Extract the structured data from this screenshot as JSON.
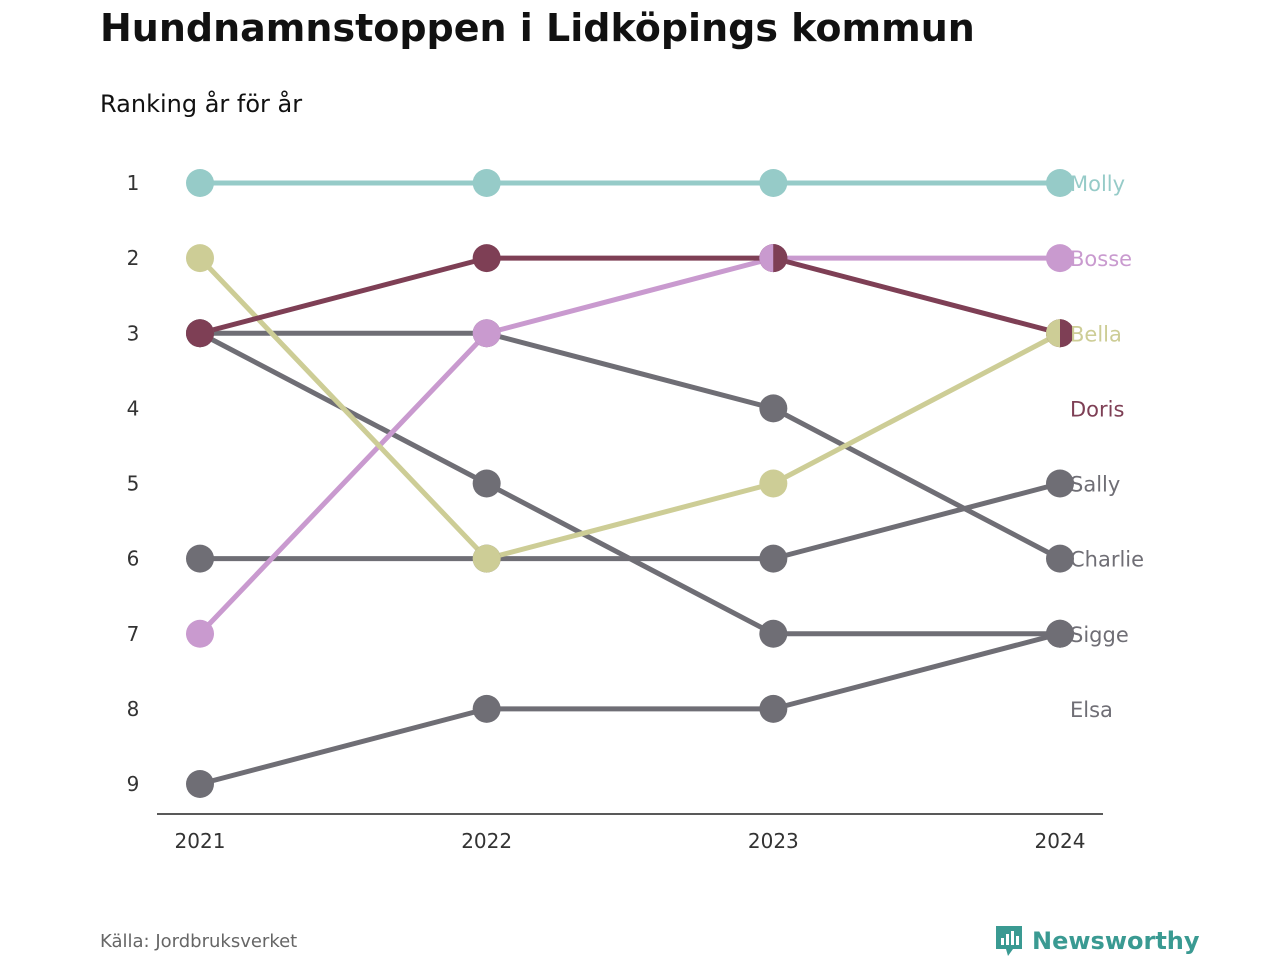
{
  "chart_data": {
    "type": "line",
    "title": "Hundnamnstoppen i Lidköpings kommun",
    "subtitle": "Ranking år för år",
    "x": [
      "2021",
      "2022",
      "2023",
      "2024"
    ],
    "y_ticks": [
      "1",
      "2",
      "3",
      "4",
      "5",
      "6",
      "7",
      "8",
      "9"
    ],
    "ylim": [
      1,
      9
    ],
    "y_inverted": true,
    "grid": false,
    "series": [
      {
        "name": "Molly",
        "values": [
          1,
          1,
          1,
          1
        ],
        "color": "#96cbc8"
      },
      {
        "name": "Bosse",
        "values": [
          7,
          3,
          2,
          2
        ],
        "color": "#c99acf"
      },
      {
        "name": "Bella",
        "values": [
          2,
          6,
          5,
          3
        ],
        "color": "#cdcd96"
      },
      {
        "name": "Doris",
        "values": [
          3,
          2,
          2,
          3
        ],
        "color": "#7e3f55"
      },
      {
        "name": "Sally",
        "values": [
          6,
          6,
          6,
          5
        ],
        "color": "#6f6e75"
      },
      {
        "name": "Charlie",
        "values": [
          3,
          3,
          4,
          6
        ],
        "color": "#6f6e75"
      },
      {
        "name": "Sigge",
        "values": [
          3,
          5,
          7,
          7
        ],
        "color": "#6f6e75"
      },
      {
        "name": "Elsa",
        "values": [
          9,
          8,
          8,
          7
        ],
        "color": "#6f6e75"
      }
    ],
    "end_labels": [
      {
        "text": "Molly",
        "rank": 1,
        "color": "#96cbc8"
      },
      {
        "text": "Bosse",
        "rank": 2,
        "color": "#c99acf"
      },
      {
        "text": "Bella",
        "rank": 3,
        "color": "#cdcd96"
      },
      {
        "text": "Doris",
        "rank": 4,
        "color": "#7e3f55"
      },
      {
        "text": "Sally",
        "rank": 5,
        "color": "#6f6e75"
      },
      {
        "text": "Charlie",
        "rank": 6,
        "color": "#6f6e75"
      },
      {
        "text": "Sigge",
        "rank": 7,
        "color": "#6f6e75"
      },
      {
        "text": "Elsa",
        "rank": 8,
        "color": "#6f6e75"
      }
    ]
  },
  "footer": {
    "source": "Källa: Jordbruksverket",
    "brand": "Newsworthy",
    "brand_icon": "newsworthy-logo-icon",
    "brand_color": "#3a9a92"
  }
}
